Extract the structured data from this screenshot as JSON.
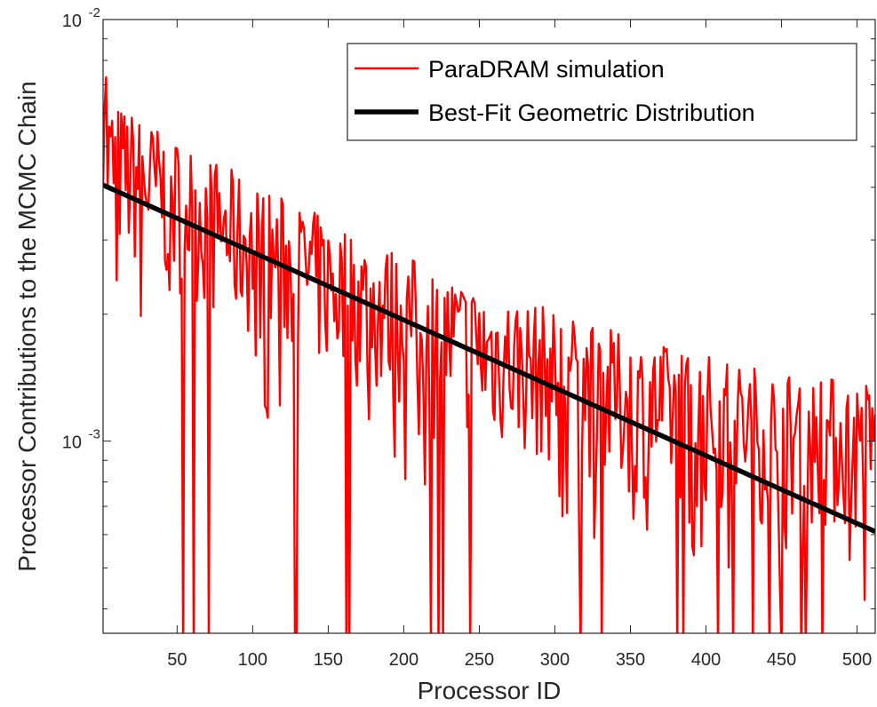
{
  "chart_data": {
    "type": "line",
    "title": "",
    "xlabel": "Processor ID",
    "ylabel": "Processor Contributions to the MCMC Chain",
    "xlim": [
      1,
      512
    ],
    "ylim": [
      0.00035,
      0.01
    ],
    "yscale": "log",
    "grid": false,
    "legend_placement": "top-right",
    "x_ticks": [
      50,
      100,
      150,
      200,
      250,
      300,
      350,
      400,
      450,
      500
    ],
    "x_tick_labels": [
      "50",
      "100",
      "150",
      "200",
      "250",
      "300",
      "350",
      "400",
      "450",
      "500"
    ],
    "y_ticks": [
      0.001,
      0.01
    ],
    "y_tick_labels": [
      {
        "base": "10",
        "exp": "-3"
      },
      {
        "base": "10",
        "exp": "-2"
      }
    ],
    "series": [
      {
        "name": "ParaDRAM simulation",
        "color": "#ff0000",
        "description_points": "noisy per-processor contributions, x = 1..512",
        "anchors_x": [
          1,
          50,
          100,
          150,
          200,
          250,
          300,
          350,
          400,
          450,
          512
        ],
        "anchors_y": [
          0.0045,
          0.0036,
          0.0028,
          0.0023,
          0.0019,
          0.0016,
          0.0014,
          0.0012,
          0.0011,
          0.001,
          0.00095
        ],
        "min_y": 0.00035,
        "max_y": 0.0073,
        "seed": 7
      },
      {
        "name": "Best-Fit Geometric Distribution",
        "color": "#000000",
        "x": [
          1,
          512
        ],
        "y": [
          0.00405,
          0.00061
        ]
      }
    ]
  }
}
